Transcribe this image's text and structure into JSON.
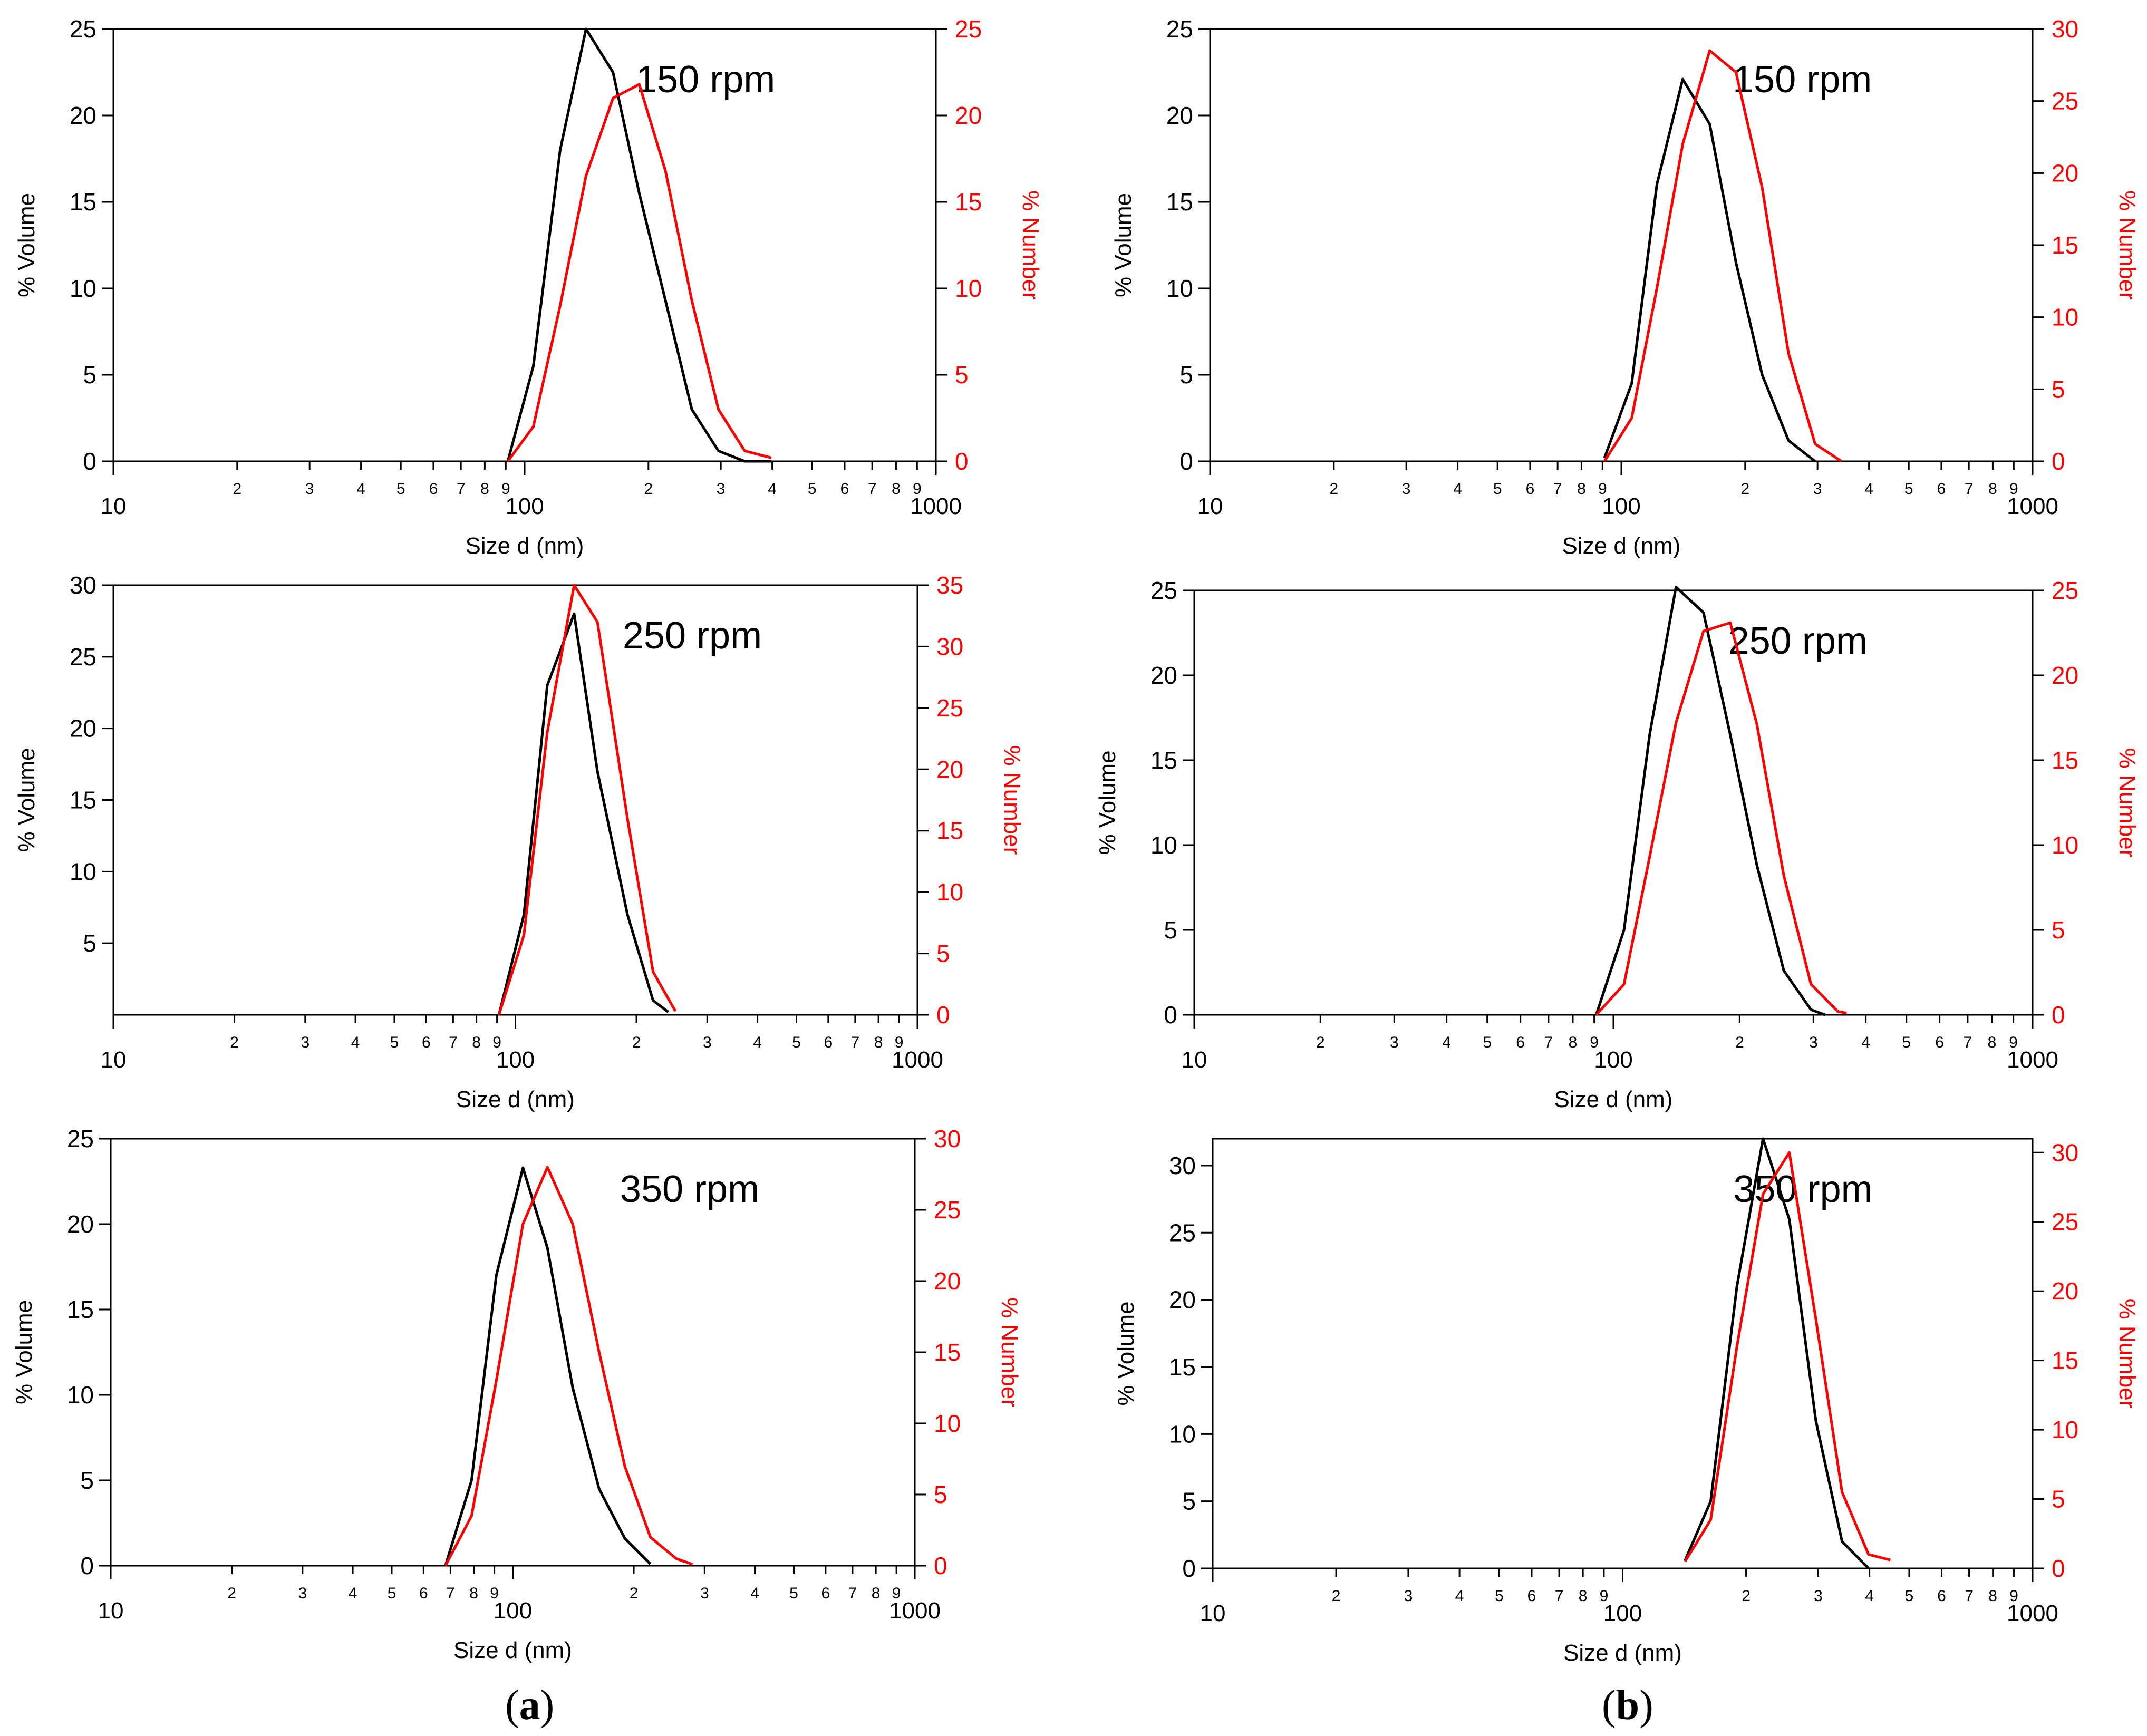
{
  "figure": {
    "panel_labels": [
      {
        "open": "(",
        "letter": "a",
        "close": ")"
      },
      {
        "open": "(",
        "letter": "b",
        "close": ")"
      }
    ]
  },
  "colors": {
    "volume": "#000000",
    "number": "#ff0000"
  },
  "chart_data": [
    {
      "panel": "a",
      "type": "line",
      "title": "150 rpm",
      "xlabel": "Size d (nm)",
      "ylabel": "% Volume",
      "y2label": "% Number",
      "xscale": "log",
      "xlim": [
        10,
        1000
      ],
      "xticks": [
        10,
        20,
        30,
        40,
        50,
        60,
        70,
        80,
        90,
        100,
        200,
        300,
        400,
        500,
        600,
        700,
        800,
        900,
        1000
      ],
      "xtick_labels": [
        "10",
        "2",
        "3",
        "4",
        "5",
        "6",
        "7",
        "8",
        "9",
        "100",
        "2",
        "3",
        "4",
        "5",
        "6",
        "7",
        "8",
        "9",
        "1000"
      ],
      "ylim": [
        0,
        25
      ],
      "yticks": [
        0,
        5,
        10,
        15,
        20,
        25
      ],
      "y2lim": [
        0,
        25
      ],
      "y2ticks": [
        0,
        5,
        10,
        15,
        20,
        25
      ],
      "series": [
        {
          "name": "% Volume",
          "axis": "left",
          "x": [
            91,
            105,
            122,
            141,
            164,
            190,
            220,
            255,
            296,
            343,
            398
          ],
          "y": [
            0,
            5.5,
            18,
            25,
            22.5,
            15.5,
            9.3,
            3,
            0.6,
            0,
            0
          ]
        },
        {
          "name": "% Number",
          "axis": "right",
          "x": [
            91,
            105,
            122,
            141,
            164,
            190,
            220,
            255,
            296,
            343,
            398
          ],
          "y": [
            0,
            2,
            9,
            16.5,
            21,
            21.8,
            16.8,
            9.3,
            3,
            0.6,
            0.2
          ]
        }
      ]
    },
    {
      "panel": "b",
      "type": "line",
      "title": "150 rpm",
      "xlabel": "Size d (nm)",
      "ylabel": "% Volume",
      "y2label": "% Number",
      "xscale": "log",
      "xlim": [
        10,
        1000
      ],
      "xticks": [
        10,
        20,
        30,
        40,
        50,
        60,
        70,
        80,
        90,
        100,
        200,
        300,
        400,
        500,
        600,
        700,
        800,
        900,
        1000
      ],
      "xtick_labels": [
        "10",
        "2",
        "3",
        "4",
        "5",
        "6",
        "7",
        "8",
        "9",
        "100",
        "2",
        "3",
        "4",
        "5",
        "6",
        "7",
        "8",
        "9",
        "1000"
      ],
      "ylim": [
        0,
        25
      ],
      "yticks": [
        0,
        5,
        10,
        15,
        20,
        25
      ],
      "y2lim": [
        0,
        30
      ],
      "y2ticks": [
        0,
        5,
        10,
        15,
        20,
        25,
        30
      ],
      "series": [
        {
          "name": "% Volume",
          "axis": "left",
          "x": [
            91,
            106,
            122,
            141,
            164,
            190,
            220,
            255,
            296
          ],
          "y": [
            0.2,
            4.5,
            16,
            22.1,
            19.5,
            11.5,
            5,
            1.2,
            0
          ]
        },
        {
          "name": "% Number",
          "axis": "right",
          "x": [
            91,
            106,
            122,
            141,
            164,
            190,
            220,
            255,
            296,
            343
          ],
          "y": [
            0,
            3,
            12,
            22,
            28.5,
            27,
            19,
            7.5,
            1.2,
            0
          ]
        }
      ]
    },
    {
      "panel": "a",
      "type": "line",
      "title": "250 rpm",
      "xlabel": "Size d (nm)",
      "ylabel": "% Volume",
      "y2label": "% Number",
      "xscale": "log",
      "xlim": [
        10,
        1000
      ],
      "xticks": [
        10,
        20,
        30,
        40,
        50,
        60,
        70,
        80,
        90,
        100,
        200,
        300,
        400,
        500,
        600,
        700,
        800,
        900,
        1000
      ],
      "xtick_labels": [
        "10",
        "2",
        "3",
        "4",
        "5",
        "6",
        "7",
        "8",
        "9",
        "100",
        "2",
        "3",
        "4",
        "5",
        "6",
        "7",
        "8",
        "9",
        "1000"
      ],
      "ylim": [
        0,
        30
      ],
      "yticks": [
        5,
        10,
        15,
        20,
        25,
        30
      ],
      "y2lim": [
        0,
        35
      ],
      "y2ticks": [
        0,
        5,
        10,
        15,
        20,
        25,
        30,
        35
      ],
      "series": [
        {
          "name": "% Volume",
          "axis": "left",
          "x": [
            91,
            105,
            120,
            140,
            160,
            190,
            220,
            240
          ],
          "y": [
            0,
            7,
            23,
            28,
            17,
            7,
            1,
            0.2
          ]
        },
        {
          "name": "% Number",
          "axis": "right",
          "x": [
            91,
            105,
            120,
            140,
            160,
            190,
            220,
            250
          ],
          "y": [
            0,
            6.5,
            23,
            35,
            32,
            16,
            3.5,
            0.3
          ]
        }
      ]
    },
    {
      "panel": "b",
      "type": "line",
      "title": "250 rpm",
      "xlabel": "Size d (nm)",
      "ylabel": "% Volume",
      "y2label": "% Number",
      "xscale": "log",
      "xlim": [
        10,
        1000
      ],
      "xticks": [
        10,
        20,
        30,
        40,
        50,
        60,
        70,
        80,
        90,
        100,
        200,
        300,
        400,
        500,
        600,
        700,
        800,
        900,
        1000
      ],
      "xtick_labels": [
        "10",
        "2",
        "3",
        "4",
        "5",
        "6",
        "7",
        "8",
        "9",
        "100",
        "2",
        "3",
        "4",
        "5",
        "6",
        "7",
        "8",
        "9",
        "1000"
      ],
      "ylim": [
        0,
        25
      ],
      "yticks": [
        0,
        5,
        10,
        15,
        20,
        25
      ],
      "y2lim": [
        0,
        25
      ],
      "y2ticks": [
        0,
        5,
        10,
        15,
        20,
        25
      ],
      "series": [
        {
          "name": "% Volume",
          "axis": "left",
          "x": [
            91,
            106,
            122,
            141,
            164,
            190,
            220,
            255,
            296,
            320
          ],
          "y": [
            0,
            5,
            16.5,
            25.2,
            23.7,
            16.5,
            8.8,
            2.6,
            0.3,
            0
          ]
        },
        {
          "name": "% Number",
          "axis": "right",
          "x": [
            91,
            106,
            122,
            141,
            164,
            190,
            220,
            255,
            296,
            343,
            360
          ],
          "y": [
            0,
            1.8,
            9.3,
            17.2,
            22.6,
            23.1,
            17.1,
            8.2,
            1.8,
            0.2,
            0.1
          ]
        }
      ]
    },
    {
      "panel": "a",
      "type": "line",
      "title": "350 rpm",
      "xlabel": "Size d (nm)",
      "ylabel": "% Volume",
      "y2label": "% Number",
      "xscale": "log",
      "xlim": [
        10,
        1000
      ],
      "xticks": [
        10,
        20,
        30,
        40,
        50,
        60,
        70,
        80,
        90,
        100,
        200,
        300,
        400,
        500,
        600,
        700,
        800,
        900,
        1000
      ],
      "xtick_labels": [
        "10",
        "2",
        "3",
        "4",
        "5",
        "6",
        "7",
        "8",
        "9",
        "100",
        "2",
        "3",
        "4",
        "5",
        "6",
        "7",
        "8",
        "9",
        "1000"
      ],
      "ylim": [
        0,
        25
      ],
      "yticks": [
        0,
        5,
        10,
        15,
        20,
        25
      ],
      "y2lim": [
        0,
        30
      ],
      "y2ticks": [
        0,
        5,
        10,
        15,
        20,
        25,
        30
      ],
      "series": [
        {
          "name": "% Volume",
          "axis": "left",
          "x": [
            68,
            79,
            91,
            106,
            122,
            141,
            164,
            190,
            220
          ],
          "y": [
            0,
            5,
            17,
            23.3,
            18.6,
            10.4,
            4.5,
            1.6,
            0.1
          ]
        },
        {
          "name": "% Number",
          "axis": "right",
          "x": [
            68,
            79,
            91,
            106,
            122,
            141,
            164,
            190,
            220,
            255,
            280
          ],
          "y": [
            0,
            3.5,
            13,
            24,
            28,
            24,
            15,
            7,
            2,
            0.5,
            0.1
          ]
        }
      ]
    },
    {
      "panel": "b",
      "type": "line",
      "title": "350 rpm",
      "xlabel": "Size d (nm)",
      "ylabel": "% Volume",
      "y2label": "% Number",
      "xscale": "log",
      "xlim": [
        10,
        1000
      ],
      "xticks": [
        10,
        20,
        30,
        40,
        50,
        60,
        70,
        80,
        90,
        100,
        200,
        300,
        400,
        500,
        600,
        700,
        800,
        900,
        1000
      ],
      "xtick_labels": [
        "10",
        "2",
        "3",
        "4",
        "5",
        "6",
        "7",
        "8",
        "9",
        "100",
        "2",
        "3",
        "4",
        "5",
        "6",
        "7",
        "8",
        "9",
        "1000"
      ],
      "ylim": [
        0,
        32
      ],
      "yticks": [
        0,
        5,
        10,
        15,
        20,
        25,
        30
      ],
      "y2lim": [
        0,
        31
      ],
      "y2ticks": [
        0,
        5,
        10,
        15,
        20,
        25,
        30
      ],
      "series": [
        {
          "name": "% Volume",
          "axis": "left",
          "x": [
            142,
            164,
            190,
            220,
            255,
            296,
            343,
            398
          ],
          "y": [
            0.6,
            5,
            21,
            32,
            26,
            11,
            2,
            0
          ]
        },
        {
          "name": "% Number",
          "axis": "right",
          "x": [
            142,
            164,
            190,
            220,
            255,
            296,
            343,
            398,
            450
          ],
          "y": [
            0.5,
            3.5,
            16,
            27,
            30,
            18,
            5.5,
            1,
            0.6
          ]
        }
      ]
    }
  ]
}
